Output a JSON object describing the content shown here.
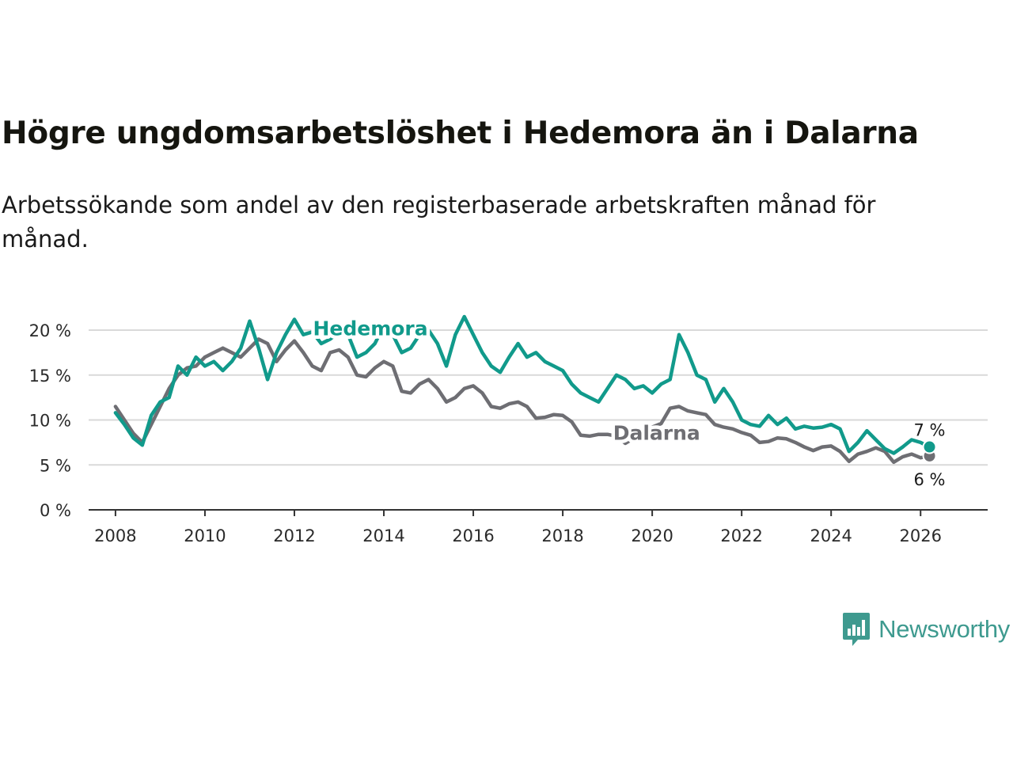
{
  "title": "Högre ungdomsarbetslöshet i Hedemora än i Dalarna",
  "subtitle": "Arbetssökande som andel av den registerbaserade arbetskraften månad för månad.",
  "brand": {
    "name": "Newsworthy",
    "icon": "bar-chart-icon",
    "color": "#3e9a8f"
  },
  "chart_data": {
    "type": "line",
    "title": "Högre ungdomsarbetslöshet i Hedemora än i Dalarna",
    "xlabel": "",
    "ylabel": "",
    "xlim": [
      2007.4,
      2027.5
    ],
    "ylim": [
      0,
      20
    ],
    "y_ticks": [
      0,
      5,
      10,
      15,
      20
    ],
    "y_tick_labels": [
      "0 %",
      "5 %",
      "10 %",
      "15 %",
      "20 %"
    ],
    "x_ticks": [
      2008,
      2010,
      2012,
      2014,
      2016,
      2018,
      2020,
      2022,
      2024,
      2026
    ],
    "x_tick_labels": [
      "2008",
      "2010",
      "2012",
      "2014",
      "2016",
      "2018",
      "2020",
      "2022",
      "2024",
      "2026"
    ],
    "grid": true,
    "series": [
      {
        "name": "Dalarna",
        "color": "#6e6e73",
        "end_label": "6 %",
        "label_anchor": [
          2020.1,
          8.6
        ],
        "points": [
          [
            2008.0,
            11.5
          ],
          [
            2008.2,
            10.0
          ],
          [
            2008.4,
            8.5
          ],
          [
            2008.6,
            7.5
          ],
          [
            2008.8,
            9.5
          ],
          [
            2009.0,
            11.5
          ],
          [
            2009.2,
            13.5
          ],
          [
            2009.4,
            15.0
          ],
          [
            2009.6,
            15.8
          ],
          [
            2009.8,
            16.0
          ],
          [
            2010.0,
            17.0
          ],
          [
            2010.2,
            17.5
          ],
          [
            2010.4,
            18.0
          ],
          [
            2010.6,
            17.5
          ],
          [
            2010.8,
            17.0
          ],
          [
            2011.0,
            18.0
          ],
          [
            2011.2,
            19.0
          ],
          [
            2011.4,
            18.5
          ],
          [
            2011.6,
            16.5
          ],
          [
            2011.8,
            17.8
          ],
          [
            2012.0,
            18.8
          ],
          [
            2012.2,
            17.5
          ],
          [
            2012.4,
            16.0
          ],
          [
            2012.6,
            15.5
          ],
          [
            2012.8,
            17.5
          ],
          [
            2013.0,
            17.8
          ],
          [
            2013.2,
            17.0
          ],
          [
            2013.4,
            15.0
          ],
          [
            2013.6,
            14.8
          ],
          [
            2013.8,
            15.8
          ],
          [
            2014.0,
            16.5
          ],
          [
            2014.2,
            16.0
          ],
          [
            2014.4,
            13.2
          ],
          [
            2014.6,
            13.0
          ],
          [
            2014.8,
            14.0
          ],
          [
            2015.0,
            14.5
          ],
          [
            2015.2,
            13.5
          ],
          [
            2015.4,
            12.0
          ],
          [
            2015.6,
            12.5
          ],
          [
            2015.8,
            13.5
          ],
          [
            2016.0,
            13.8
          ],
          [
            2016.2,
            13.0
          ],
          [
            2016.4,
            11.5
          ],
          [
            2016.6,
            11.3
          ],
          [
            2016.8,
            11.8
          ],
          [
            2017.0,
            12.0
          ],
          [
            2017.2,
            11.5
          ],
          [
            2017.4,
            10.2
          ],
          [
            2017.6,
            10.3
          ],
          [
            2017.8,
            10.6
          ],
          [
            2018.0,
            10.5
          ],
          [
            2018.2,
            9.8
          ],
          [
            2018.4,
            8.3
          ],
          [
            2018.6,
            8.2
          ],
          [
            2018.8,
            8.4
          ],
          [
            2019.0,
            8.4
          ],
          [
            2019.2,
            8.2
          ],
          [
            2019.4,
            7.4
          ],
          [
            2019.6,
            8.0
          ],
          [
            2019.8,
            8.5
          ],
          [
            2020.0,
            9.2
          ],
          [
            2020.2,
            9.6
          ],
          [
            2020.4,
            11.3
          ],
          [
            2020.6,
            11.5
          ],
          [
            2020.8,
            11.0
          ],
          [
            2021.0,
            10.8
          ],
          [
            2021.2,
            10.6
          ],
          [
            2021.4,
            9.5
          ],
          [
            2021.6,
            9.2
          ],
          [
            2021.8,
            9.0
          ],
          [
            2022.0,
            8.6
          ],
          [
            2022.2,
            8.3
          ],
          [
            2022.4,
            7.5
          ],
          [
            2022.6,
            7.6
          ],
          [
            2022.8,
            8.0
          ],
          [
            2023.0,
            7.9
          ],
          [
            2023.2,
            7.5
          ],
          [
            2023.4,
            7.0
          ],
          [
            2023.6,
            6.6
          ],
          [
            2023.8,
            7.0
          ],
          [
            2024.0,
            7.1
          ],
          [
            2024.2,
            6.5
          ],
          [
            2024.4,
            5.4
          ],
          [
            2024.6,
            6.2
          ],
          [
            2024.8,
            6.5
          ],
          [
            2025.0,
            6.9
          ],
          [
            2025.2,
            6.5
          ],
          [
            2025.4,
            5.3
          ],
          [
            2025.6,
            5.9
          ],
          [
            2025.8,
            6.2
          ],
          [
            2026.0,
            5.8
          ],
          [
            2026.2,
            6.0
          ]
        ]
      },
      {
        "name": "Hedemora",
        "color": "#119a8b",
        "end_label": "7 %",
        "label_anchor": [
          2013.7,
          20.2
        ],
        "points": [
          [
            2008.0,
            10.8
          ],
          [
            2008.2,
            9.5
          ],
          [
            2008.4,
            8.0
          ],
          [
            2008.6,
            7.2
          ],
          [
            2008.8,
            10.5
          ],
          [
            2009.0,
            12.0
          ],
          [
            2009.2,
            12.5
          ],
          [
            2009.4,
            16.0
          ],
          [
            2009.6,
            15.0
          ],
          [
            2009.8,
            17.0
          ],
          [
            2010.0,
            16.0
          ],
          [
            2010.2,
            16.5
          ],
          [
            2010.4,
            15.5
          ],
          [
            2010.6,
            16.5
          ],
          [
            2010.8,
            18.0
          ],
          [
            2011.0,
            21.0
          ],
          [
            2011.2,
            18.0
          ],
          [
            2011.4,
            14.5
          ],
          [
            2011.6,
            17.5
          ],
          [
            2011.8,
            19.5
          ],
          [
            2012.0,
            21.2
          ],
          [
            2012.2,
            19.5
          ],
          [
            2012.4,
            19.8
          ],
          [
            2012.6,
            18.5
          ],
          [
            2012.8,
            19.0
          ],
          [
            2013.0,
            19.8
          ],
          [
            2013.2,
            19.5
          ],
          [
            2013.4,
            17.0
          ],
          [
            2013.6,
            17.5
          ],
          [
            2013.8,
            18.5
          ],
          [
            2014.0,
            20.5
          ],
          [
            2014.2,
            19.5
          ],
          [
            2014.4,
            17.5
          ],
          [
            2014.6,
            18.0
          ],
          [
            2014.8,
            19.5
          ],
          [
            2015.0,
            20.0
          ],
          [
            2015.2,
            18.5
          ],
          [
            2015.4,
            16.0
          ],
          [
            2015.6,
            19.5
          ],
          [
            2015.8,
            21.5
          ],
          [
            2016.0,
            19.5
          ],
          [
            2016.2,
            17.5
          ],
          [
            2016.4,
            16.0
          ],
          [
            2016.6,
            15.3
          ],
          [
            2016.8,
            17.0
          ],
          [
            2017.0,
            18.5
          ],
          [
            2017.2,
            17.0
          ],
          [
            2017.4,
            17.5
          ],
          [
            2017.6,
            16.5
          ],
          [
            2017.8,
            16.0
          ],
          [
            2018.0,
            15.5
          ],
          [
            2018.2,
            14.0
          ],
          [
            2018.4,
            13.0
          ],
          [
            2018.6,
            12.5
          ],
          [
            2018.8,
            12.0
          ],
          [
            2019.0,
            13.5
          ],
          [
            2019.2,
            15.0
          ],
          [
            2019.4,
            14.5
          ],
          [
            2019.6,
            13.5
          ],
          [
            2019.8,
            13.8
          ],
          [
            2020.0,
            13.0
          ],
          [
            2020.2,
            14.0
          ],
          [
            2020.4,
            14.5
          ],
          [
            2020.6,
            19.5
          ],
          [
            2020.8,
            17.5
          ],
          [
            2021.0,
            15.0
          ],
          [
            2021.2,
            14.5
          ],
          [
            2021.4,
            12.0
          ],
          [
            2021.6,
            13.5
          ],
          [
            2021.8,
            12.0
          ],
          [
            2022.0,
            10.0
          ],
          [
            2022.2,
            9.5
          ],
          [
            2022.4,
            9.3
          ],
          [
            2022.6,
            10.5
          ],
          [
            2022.8,
            9.5
          ],
          [
            2023.0,
            10.2
          ],
          [
            2023.2,
            9.0
          ],
          [
            2023.4,
            9.3
          ],
          [
            2023.6,
            9.1
          ],
          [
            2023.8,
            9.2
          ],
          [
            2024.0,
            9.5
          ],
          [
            2024.2,
            9.0
          ],
          [
            2024.4,
            6.5
          ],
          [
            2024.6,
            7.5
          ],
          [
            2024.8,
            8.8
          ],
          [
            2025.0,
            7.8
          ],
          [
            2025.2,
            6.8
          ],
          [
            2025.4,
            6.3
          ],
          [
            2025.6,
            7.0
          ],
          [
            2025.8,
            7.8
          ],
          [
            2026.0,
            7.5
          ],
          [
            2026.2,
            7.0
          ]
        ]
      }
    ]
  }
}
